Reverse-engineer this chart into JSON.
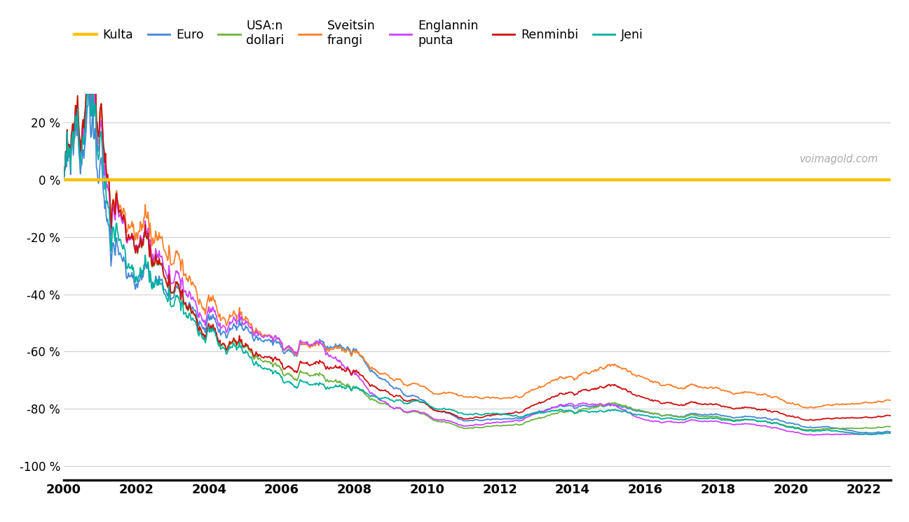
{
  "title": "",
  "watermark": "voimagold.com",
  "background_color": "#ffffff",
  "grid_color": "#d0d0d0",
  "ylim": [
    -105,
    30
  ],
  "yticks": [
    20,
    0,
    -20,
    -40,
    -60,
    -80,
    -100
  ],
  "ytick_labels": [
    "20 %",
    "0 %",
    "-20 %",
    "-40 %",
    "-60 %",
    "-80 %",
    "-100 %"
  ],
  "xstart": 2000,
  "xend": 2022.75,
  "currencies": [
    "Kulta",
    "Euro",
    "USA:n\ndollari",
    "Sveitsin\nfrangi",
    "Englannin\npunta",
    "Renminbi",
    "Jeni"
  ],
  "colors": [
    "#FFC000",
    "#4287d6",
    "#6db33f",
    "#FF7F2A",
    "#cc44ff",
    "#cc1111",
    "#00b09e"
  ],
  "linewidths": [
    3.2,
    1.3,
    1.3,
    1.3,
    1.3,
    1.3,
    1.3
  ]
}
